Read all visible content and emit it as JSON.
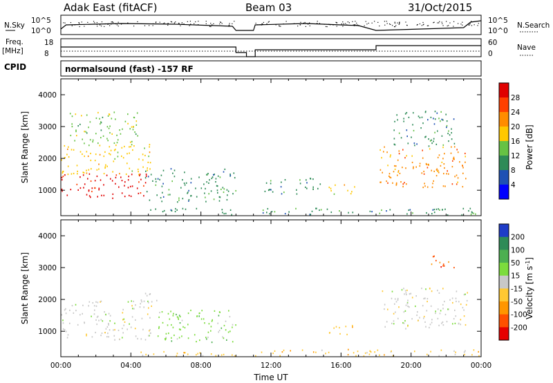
{
  "header": {
    "station": "Adak East (fitACF)",
    "beam": "Beam 03",
    "date": "31/Oct/2015"
  },
  "top_panel": {
    "left_label": "N.Sky",
    "right_label": "N.Search",
    "left_ticks": [
      "10^5",
      "10^0"
    ],
    "right_ticks": [
      "10^5",
      "10^0"
    ]
  },
  "freq_panel": {
    "left_label_1": "Freq.",
    "left_label_2": "[MHz]",
    "right_label": "Nave",
    "left_ticks": [
      "18",
      "8"
    ],
    "right_ticks": [
      "60",
      "0"
    ]
  },
  "cpid": {
    "label": "CPID",
    "value": "normalsound (fast) -157 RF"
  },
  "chart_data": [
    {
      "type": "heatmap",
      "ylabel": "Slant Range [km]",
      "xlabel": "Time UT",
      "ylim": [
        200,
        4500
      ],
      "yticks": [
        1000,
        2000,
        3000,
        4000
      ],
      "xticks": [
        "00:00",
        "04:00",
        "08:00",
        "12:00",
        "16:00",
        "20:00",
        "00:00"
      ],
      "colorbar": {
        "label": "Power [dB]",
        "ticks": [
          "28",
          "24",
          "20",
          "16",
          "12",
          "8",
          "4"
        ],
        "colors": [
          "#e00000",
          "#ff4000",
          "#ff8c00",
          "#ffc800",
          "#66c244",
          "#2e8b57",
          "#1e50b4",
          "#0000ff"
        ]
      },
      "regions": [
        {
          "t0": 0.0,
          "t1": 4.9,
          "r0": 750,
          "r1": 1550,
          "level": "28"
        },
        {
          "t0": 0.0,
          "t1": 5.2,
          "r0": 1500,
          "r1": 2500,
          "level": "16"
        },
        {
          "t0": 0.5,
          "t1": 4.5,
          "r0": 2500,
          "r1": 3500,
          "level": "12"
        },
        {
          "t0": 4.8,
          "t1": 10.2,
          "r0": 650,
          "r1": 1700,
          "level": "8"
        },
        {
          "t0": 11.5,
          "t1": 14.8,
          "r0": 900,
          "r1": 1400,
          "level": "8"
        },
        {
          "t0": 15.2,
          "t1": 16.8,
          "r0": 850,
          "r1": 1200,
          "level": "16"
        },
        {
          "t0": 18.2,
          "t1": 23.2,
          "r0": 1100,
          "r1": 2400,
          "level": "20"
        },
        {
          "t0": 19.0,
          "t1": 22.5,
          "r0": 2400,
          "r1": 3500,
          "level": "8"
        },
        {
          "t0": 4.5,
          "t1": 24.0,
          "r0": 200,
          "r1": 450,
          "level": "8"
        }
      ]
    },
    {
      "type": "heatmap",
      "ylabel": "Slant Range [km]",
      "xlabel": "Time UT",
      "ylim": [
        200,
        4500
      ],
      "yticks": [
        1000,
        2000,
        3000,
        4000
      ],
      "xticks": [
        "00:00",
        "04:00",
        "08:00",
        "12:00",
        "16:00",
        "20:00",
        "00:00"
      ],
      "colorbar": {
        "label": "Velocity [m s",
        "label_sup": "-1",
        "label_end": "]",
        "ticks": [
          "200",
          "100",
          "50",
          "15",
          "-15",
          "-50",
          "-100",
          "-200"
        ],
        "colors": [
          "#1e3cc8",
          "#2e8b57",
          "#4caf50",
          "#7cdc3c",
          "#c8c8c8",
          "#ffc832",
          "#ff9600",
          "#ff5000",
          "#e60000"
        ]
      },
      "regions": [
        {
          "t0": 0.0,
          "t1": 5.2,
          "r0": 750,
          "r1": 2000,
          "level": "-15"
        },
        {
          "t0": 4.8,
          "t1": 5.5,
          "r0": 1800,
          "r1": 2300,
          "level": "-15"
        },
        {
          "t0": 5.5,
          "t1": 10.2,
          "r0": 650,
          "r1": 1700,
          "level": "15"
        },
        {
          "t0": 15.2,
          "t1": 16.8,
          "r0": 850,
          "r1": 1200,
          "level": "-50"
        },
        {
          "t0": 18.2,
          "t1": 23.2,
          "r0": 1100,
          "r1": 2400,
          "level": "-15"
        },
        {
          "t0": 21.0,
          "t1": 22.5,
          "r0": 3000,
          "r1": 3400,
          "level": "-200"
        },
        {
          "t0": 4.5,
          "t1": 24.0,
          "r0": 200,
          "r1": 450,
          "level": "-50"
        }
      ]
    }
  ]
}
